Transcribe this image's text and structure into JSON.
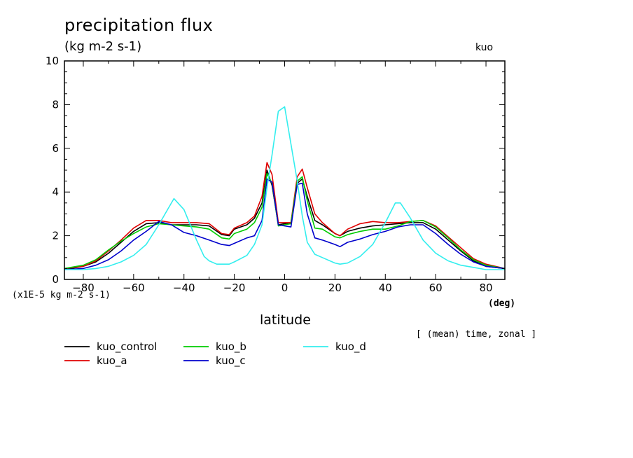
{
  "header": {
    "title": "precipitation flux",
    "units": "(kg m-2 s-1)",
    "tag": "kuo"
  },
  "axis_text": {
    "scale_note": "(x1E-5 kg m-2 s-1)",
    "x_unit": "(deg)",
    "x_label": "latitude",
    "footnote": "[ (mean) time, zonal ]"
  },
  "colors": {
    "kuo_control": "#000000",
    "kuo_a": "#e00000",
    "kuo_b": "#00cc00",
    "kuo_c": "#0000cc",
    "kuo_d": "#33eeee"
  },
  "chart_data": {
    "type": "line",
    "title": "precipitation flux",
    "xlabel": "latitude",
    "ylabel": "(kg m-2 s-1)",
    "xlim": [
      -87.5,
      87.5
    ],
    "ylim": [
      0,
      10
    ],
    "xticks": [
      -80,
      -60,
      -40,
      -20,
      0,
      20,
      40,
      60,
      80
    ],
    "yticks": [
      0,
      2,
      4,
      6,
      8,
      10
    ],
    "legend_position": "bottom",
    "grid": false,
    "series": [
      {
        "name": "kuo_control",
        "x": [
          -87.5,
          -80,
          -75,
          -70,
          -65,
          -60,
          -55,
          -50,
          -45,
          -40,
          -35,
          -30,
          -25,
          -22,
          -20,
          -15,
          -12,
          -9,
          -7,
          -5,
          -2.5,
          0,
          2.5,
          5,
          7,
          9,
          12,
          15,
          20,
          22,
          25,
          30,
          35,
          40,
          45,
          50,
          55,
          60,
          65,
          70,
          75,
          80,
          87.5
        ],
        "values": [
          0.45,
          0.6,
          0.8,
          1.2,
          1.7,
          2.2,
          2.55,
          2.6,
          2.5,
          2.5,
          2.5,
          2.45,
          2.05,
          2.0,
          2.3,
          2.5,
          2.8,
          3.5,
          5.0,
          4.3,
          2.5,
          2.55,
          2.6,
          4.4,
          4.6,
          3.8,
          2.7,
          2.5,
          2.1,
          2.0,
          2.2,
          2.35,
          2.45,
          2.5,
          2.55,
          2.6,
          2.6,
          2.3,
          1.8,
          1.3,
          0.85,
          0.6,
          0.5
        ]
      },
      {
        "name": "kuo_a",
        "x": [
          -87.5,
          -80,
          -75,
          -70,
          -65,
          -60,
          -55,
          -50,
          -45,
          -40,
          -35,
          -30,
          -25,
          -22,
          -20,
          -15,
          -12,
          -9,
          -7,
          -5,
          -2.5,
          0,
          2.5,
          5,
          7,
          9,
          12,
          15,
          20,
          22,
          25,
          30,
          35,
          40,
          45,
          50,
          55,
          60,
          65,
          70,
          75,
          80,
          87.5
        ],
        "values": [
          0.5,
          0.6,
          0.85,
          1.3,
          1.8,
          2.35,
          2.7,
          2.7,
          2.6,
          2.6,
          2.6,
          2.55,
          2.1,
          2.05,
          2.35,
          2.6,
          2.9,
          3.8,
          5.35,
          4.8,
          2.6,
          2.6,
          2.6,
          4.7,
          5.05,
          4.2,
          3.0,
          2.6,
          2.1,
          2.0,
          2.3,
          2.55,
          2.65,
          2.6,
          2.6,
          2.65,
          2.7,
          2.45,
          1.95,
          1.45,
          0.95,
          0.7,
          0.5
        ]
      },
      {
        "name": "kuo_b",
        "x": [
          -87.5,
          -80,
          -75,
          -70,
          -65,
          -60,
          -55,
          -50,
          -45,
          -40,
          -35,
          -30,
          -25,
          -22,
          -20,
          -15,
          -12,
          -9,
          -7,
          -5,
          -2.5,
          0,
          2.5,
          5,
          7,
          9,
          12,
          15,
          20,
          22,
          25,
          30,
          35,
          40,
          45,
          50,
          55,
          60,
          65,
          70,
          75,
          80,
          87.5
        ],
        "values": [
          0.5,
          0.65,
          0.9,
          1.35,
          1.75,
          2.1,
          2.4,
          2.55,
          2.5,
          2.45,
          2.4,
          2.3,
          1.9,
          1.85,
          2.1,
          2.3,
          2.6,
          3.3,
          4.85,
          4.4,
          2.45,
          2.5,
          2.55,
          4.5,
          4.7,
          3.6,
          2.35,
          2.3,
          1.95,
          1.9,
          2.05,
          2.2,
          2.3,
          2.3,
          2.45,
          2.65,
          2.7,
          2.4,
          1.9,
          1.35,
          0.9,
          0.65,
          0.5
        ]
      },
      {
        "name": "kuo_c",
        "x": [
          -87.5,
          -80,
          -75,
          -70,
          -65,
          -60,
          -55,
          -50,
          -45,
          -40,
          -35,
          -30,
          -25,
          -22,
          -20,
          -15,
          -12,
          -9,
          -7,
          -5,
          -2.5,
          0,
          2.5,
          5,
          7,
          9,
          12,
          15,
          20,
          22,
          25,
          30,
          35,
          40,
          45,
          50,
          55,
          60,
          65,
          70,
          75,
          80,
          87.5
        ],
        "values": [
          0.45,
          0.5,
          0.65,
          0.9,
          1.3,
          1.8,
          2.2,
          2.65,
          2.5,
          2.15,
          2.0,
          1.8,
          1.6,
          1.55,
          1.65,
          1.9,
          2.0,
          2.7,
          4.6,
          4.45,
          2.5,
          2.45,
          2.4,
          4.35,
          4.4,
          3.0,
          1.9,
          1.8,
          1.6,
          1.5,
          1.7,
          1.85,
          2.05,
          2.2,
          2.4,
          2.5,
          2.5,
          2.1,
          1.6,
          1.15,
          0.8,
          0.6,
          0.5
        ]
      },
      {
        "name": "kuo_d",
        "x": [
          -87.5,
          -80,
          -75,
          -70,
          -65,
          -60,
          -55,
          -50,
          -46,
          -44,
          -40,
          -35,
          -32,
          -30,
          -27,
          -25,
          -22,
          -20,
          -15,
          -12,
          -9,
          -7,
          -5,
          -2.5,
          0,
          2.5,
          5,
          7,
          9,
          12,
          15,
          20,
          22,
          25,
          30,
          35,
          40,
          44,
          46,
          50,
          55,
          60,
          65,
          70,
          75,
          80,
          87.5
        ],
        "values": [
          0.45,
          0.45,
          0.5,
          0.6,
          0.8,
          1.1,
          1.6,
          2.5,
          3.3,
          3.7,
          3.2,
          1.8,
          1.05,
          0.85,
          0.7,
          0.7,
          0.7,
          0.8,
          1.1,
          1.6,
          2.5,
          4.2,
          5.7,
          7.7,
          7.9,
          6.2,
          4.5,
          2.9,
          1.7,
          1.15,
          1.0,
          0.75,
          0.7,
          0.75,
          1.05,
          1.6,
          2.6,
          3.5,
          3.5,
          2.8,
          1.8,
          1.2,
          0.85,
          0.65,
          0.55,
          0.45,
          0.45
        ]
      }
    ]
  }
}
